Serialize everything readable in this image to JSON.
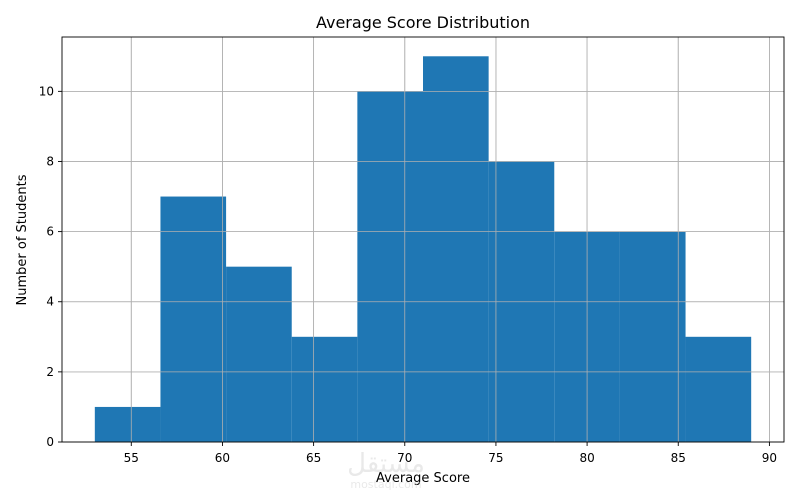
{
  "chart_data": {
    "type": "bar",
    "title": "Average Score Distribution",
    "xlabel": "Average Score",
    "ylabel": "Number of Students",
    "bins": [
      {
        "start": 53.0,
        "end": 56.6,
        "count": 1
      },
      {
        "start": 56.6,
        "end": 60.2,
        "count": 7
      },
      {
        "start": 60.2,
        "end": 63.8,
        "count": 5
      },
      {
        "start": 63.8,
        "end": 67.4,
        "count": 3
      },
      {
        "start": 67.4,
        "end": 71.0,
        "count": 10
      },
      {
        "start": 71.0,
        "end": 74.6,
        "count": 11
      },
      {
        "start": 74.6,
        "end": 78.2,
        "count": 8
      },
      {
        "start": 78.2,
        "end": 81.8,
        "count": 6
      },
      {
        "start": 81.8,
        "end": 85.4,
        "count": 6
      },
      {
        "start": 85.4,
        "end": 89.0,
        "count": 3
      }
    ],
    "xlim": [
      51.2,
      90.8
    ],
    "ylim": [
      0,
      11.55
    ],
    "xticks": [
      55,
      60,
      65,
      70,
      75,
      80,
      85,
      90
    ],
    "yticks": [
      0,
      2,
      4,
      6,
      8,
      10
    ],
    "grid": true,
    "colors": {
      "bar": "#1f77b4",
      "grid": "#b0b0b0",
      "axis": "#000000"
    }
  },
  "watermark": {
    "text": "مستقل",
    "subtext": "mostaql.com"
  }
}
